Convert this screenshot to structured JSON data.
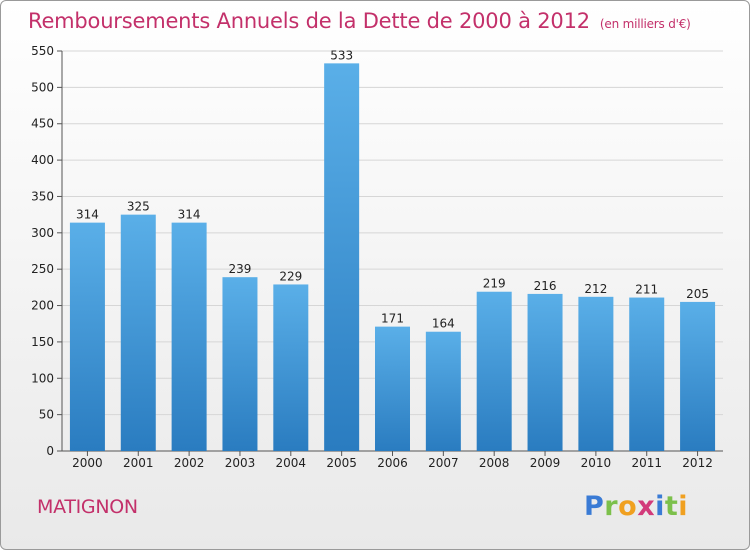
{
  "header": {
    "title": "Remboursements Annuels de la Dette de 2000 à 2012",
    "unit": "(en milliers d'€)"
  },
  "commune": "MATIGNON",
  "brand": {
    "name": "Proxiti",
    "letters": [
      {
        "ch": "P",
        "color": "#3a7bd5"
      },
      {
        "ch": "r",
        "color": "#7cc04b"
      },
      {
        "ch": "o",
        "color": "#f0a020"
      },
      {
        "ch": "x",
        "color": "#d23a7a"
      },
      {
        "ch": "i",
        "color": "#3a7bd5"
      },
      {
        "ch": "t",
        "color": "#7cc04b"
      },
      {
        "ch": "i",
        "color": "#f0a020"
      }
    ]
  },
  "colors": {
    "bar_light": "#5aafe8",
    "bar_dark": "#2a7cc0",
    "title": "#c3306a"
  },
  "chart_data": {
    "type": "bar",
    "title": "Remboursements Annuels de la Dette de 2000 à 2012",
    "xlabel": "",
    "ylabel": "",
    "categories": [
      "2000",
      "2001",
      "2002",
      "2003",
      "2004",
      "2005",
      "2006",
      "2007",
      "2008",
      "2009",
      "2010",
      "2011",
      "2012"
    ],
    "values": [
      314,
      325,
      314,
      239,
      229,
      533,
      171,
      164,
      219,
      216,
      212,
      211,
      205
    ],
    "ylim": [
      0,
      550
    ],
    "yticks": [
      0,
      50,
      100,
      150,
      200,
      250,
      300,
      350,
      400,
      450,
      500,
      550
    ],
    "grid": true,
    "legend": "none"
  }
}
